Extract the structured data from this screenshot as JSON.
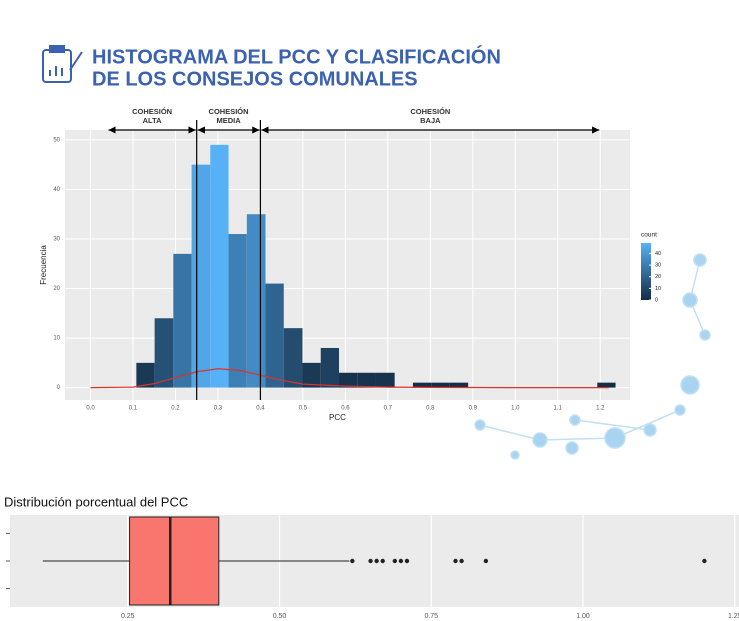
{
  "header": {
    "title_lines": [
      "HISTOGRAMA DEL PCC Y CLASIFICACIÓN",
      "DE LOS CONSEJOS COMUNALES"
    ]
  },
  "chart_data": [
    {
      "type": "histogram",
      "x_label": "PCC",
      "y_label": "Frecuencia",
      "bins": [
        0.108,
        0.151,
        0.195,
        0.238,
        0.282,
        0.325,
        0.368,
        0.412,
        0.455,
        0.499,
        0.542,
        0.585,
        0.629,
        0.672,
        0.716,
        0.759,
        0.802,
        0.846,
        0.889,
        0.933,
        0.976,
        1.019,
        1.063,
        1.106,
        1.15,
        1.193,
        1.236
      ],
      "values": [
        5,
        14,
        27,
        45,
        49,
        31,
        35,
        21,
        12,
        5,
        8,
        3,
        3,
        3,
        0,
        1,
        1,
        1,
        0,
        0,
        0,
        0,
        0,
        0,
        0,
        1
      ],
      "color_scale": {
        "low": "#132B43",
        "high": "#56B1F7",
        "title": "count",
        "lim": [
          0,
          49
        ],
        "ticks": [
          0,
          10,
          20,
          30,
          40
        ]
      },
      "density": {
        "color": "#d9342b",
        "x": [
          0,
          0.1,
          0.15,
          0.2,
          0.25,
          0.3,
          0.35,
          0.4,
          0.45,
          0.5,
          0.6,
          0.7,
          0.8,
          1.0,
          1.22
        ],
        "values": [
          0,
          0.1,
          0.8,
          2,
          3.2,
          3.8,
          3.5,
          2.5,
          1.5,
          0.7,
          0.3,
          0.1,
          0.05,
          0,
          0
        ]
      },
      "vlines": [
        0.25,
        0.4
      ],
      "annotations": [
        {
          "lines": [
            "COHESIÓN",
            "ALTA"
          ],
          "from": 0.04,
          "to": 0.25
        },
        {
          "lines": [
            "COHESIÓN",
            "MEDIA"
          ],
          "from": 0.25,
          "to": 0.4
        },
        {
          "lines": [
            "COHESIÓN",
            "BAJA"
          ],
          "from": 0.4,
          "to": 1.2
        }
      ],
      "xlim": [
        -0.06,
        1.27
      ],
      "ylim": [
        -2.5,
        52
      ],
      "xticks": [
        {
          "value": 0,
          "label": "0.0"
        },
        0.1,
        0.2,
        0.3,
        0.4,
        0.5,
        0.6,
        0.7,
        0.8,
        0.9,
        {
          "value": 1,
          "label": "1.0"
        },
        1.1,
        1.2
      ],
      "yticks": [
        0,
        10,
        20,
        30,
        40,
        50
      ],
      "grid": true
    },
    {
      "type": "boxplot",
      "title": "Distribución porcentual del PCC",
      "color": "#F8766D",
      "stats": {
        "whisker_low": 0.11,
        "q1": 0.253,
        "median": 0.32,
        "q3": 0.4,
        "whisker_high": 0.615
      },
      "outliers": [
        0.62,
        0.65,
        0.66,
        0.67,
        0.69,
        0.7,
        0.71,
        0.79,
        0.8,
        0.84,
        1.2
      ],
      "xlim": [
        0.056,
        1.257
      ],
      "xticks": [
        0.25,
        {
          "value": 0.5,
          "label": "0.50"
        },
        0.75,
        {
          "value": 1,
          "label": "1.00"
        },
        1.25
      ],
      "grid": true
    }
  ]
}
